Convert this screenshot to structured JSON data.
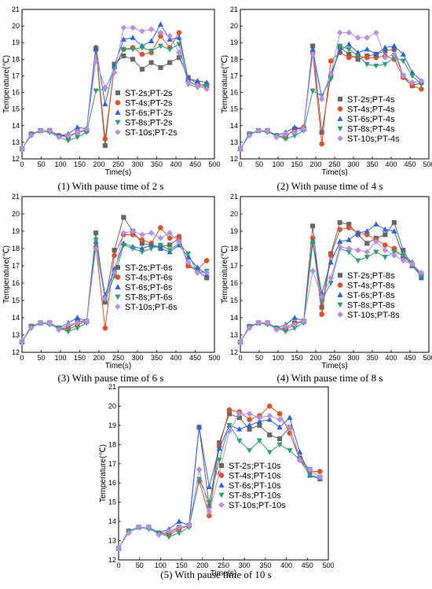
{
  "chart_data": [
    {
      "type": "line",
      "caption": "(1) With pause time of 2 s",
      "xlabel": "Time(s)",
      "ylabel": "Temperature(℃)",
      "xlim": [
        0,
        500
      ],
      "ylim": [
        12,
        21
      ],
      "xticks": [
        0,
        50,
        100,
        150,
        200,
        250,
        300,
        350,
        400,
        450,
        500
      ],
      "yticks": [
        12,
        13,
        14,
        15,
        16,
        17,
        18,
        19,
        20,
        21
      ],
      "x": [
        0,
        24,
        48,
        72,
        96,
        120,
        144,
        168,
        192,
        216,
        240,
        264,
        288,
        312,
        336,
        360,
        384,
        408,
        432,
        456,
        480
      ],
      "series": [
        {
          "name": "ST-2s;PT-2s",
          "color": "#666666",
          "marker": "square",
          "values": [
            12.6,
            13.5,
            13.7,
            13.7,
            13.4,
            13.3,
            13.6,
            13.7,
            18.6,
            12.8,
            17.7,
            18.2,
            18.0,
            17.4,
            17.8,
            17.5,
            17.8,
            18.1,
            16.9,
            16.5,
            16.4
          ]
        },
        {
          "name": "ST-4s;PT-2s",
          "color": "#d9532c",
          "marker": "circle",
          "values": [
            12.6,
            13.5,
            13.7,
            13.7,
            13.4,
            13.4,
            13.6,
            13.8,
            18.7,
            13.2,
            17.5,
            18.6,
            18.7,
            18.3,
            18.4,
            19.4,
            18.7,
            19.6,
            16.7,
            16.4,
            16.5
          ]
        },
        {
          "name": "ST-6s;PT-2s",
          "color": "#2c62d9",
          "marker": "triangle",
          "values": [
            12.6,
            13.5,
            13.7,
            13.7,
            13.4,
            13.5,
            13.9,
            13.8,
            18.7,
            15.3,
            17.6,
            19.2,
            19.3,
            18.8,
            19.1,
            20.1,
            19.2,
            19.3,
            16.8,
            16.7,
            16.6
          ]
        },
        {
          "name": "ST-8s;PT-2s",
          "color": "#2e9b7a",
          "marker": "triangle-down",
          "values": [
            12.6,
            13.5,
            13.7,
            13.6,
            13.3,
            13.1,
            13.3,
            13.6,
            16.1,
            16.2,
            17.4,
            18.6,
            18.6,
            18.7,
            18.5,
            18.8,
            18.6,
            18.9,
            16.5,
            16.3,
            16.4
          ]
        },
        {
          "name": "ST-10s;PT-2s",
          "color": "#b98ee6",
          "marker": "diamond",
          "values": [
            12.6,
            13.4,
            13.7,
            13.7,
            13.3,
            13.4,
            13.6,
            13.8,
            17.9,
            16.3,
            17.2,
            19.9,
            19.9,
            19.7,
            19.8,
            19.6,
            19.4,
            18.4,
            16.6,
            16.4,
            16.2
          ]
        }
      ]
    },
    {
      "type": "line",
      "caption": "(2) With pause time of 4 s",
      "xlabel": "Time(s)",
      "ylabel": "Temperature(℃)",
      "xlim": [
        0,
        500
      ],
      "ylim": [
        12,
        21
      ],
      "xticks": [
        0,
        50,
        100,
        150,
        200,
        250,
        300,
        350,
        400,
        450,
        500
      ],
      "yticks": [
        12,
        13,
        14,
        15,
        16,
        17,
        18,
        19,
        20,
        21
      ],
      "x": [
        0,
        24,
        48,
        72,
        96,
        120,
        144,
        168,
        192,
        216,
        240,
        264,
        288,
        312,
        336,
        360,
        384,
        408,
        432,
        456,
        480
      ],
      "series": [
        {
          "name": "ST-2s;PT-4s",
          "color": "#666666",
          "marker": "square",
          "values": [
            12.6,
            13.5,
            13.7,
            13.7,
            13.4,
            13.3,
            13.8,
            13.8,
            18.8,
            13.6,
            17.0,
            18.7,
            18.3,
            18.0,
            18.2,
            18.3,
            18.5,
            18.6,
            17.0,
            16.4,
            16.6
          ]
        },
        {
          "name": "ST-4s;PT-4s",
          "color": "#d9532c",
          "marker": "circle",
          "values": [
            12.6,
            13.5,
            13.7,
            13.7,
            13.4,
            13.3,
            13.8,
            13.9,
            18.4,
            12.9,
            17.9,
            18.4,
            18.1,
            18.2,
            18.1,
            18.1,
            18.2,
            18.0,
            16.9,
            16.4,
            16.2
          ]
        },
        {
          "name": "ST-6s;PT-4s",
          "color": "#2c62d9",
          "marker": "triangle",
          "values": [
            12.6,
            13.5,
            13.7,
            13.7,
            13.4,
            13.6,
            13.9,
            13.8,
            18.6,
            15.7,
            17.1,
            18.5,
            18.9,
            18.4,
            18.6,
            18.3,
            18.7,
            18.8,
            18.3,
            17.2,
            16.7
          ]
        },
        {
          "name": "ST-8s;PT-4s",
          "color": "#2e9b7a",
          "marker": "triangle-down",
          "values": [
            12.6,
            13.5,
            13.7,
            13.6,
            13.4,
            13.2,
            13.4,
            13.7,
            16.1,
            15.8,
            16.8,
            18.8,
            18.6,
            18.2,
            17.7,
            17.6,
            17.7,
            18.1,
            17.9,
            17.0,
            16.5
          ]
        },
        {
          "name": "ST-10s;PT-4s",
          "color": "#b98ee6",
          "marker": "diamond",
          "values": [
            12.6,
            13.4,
            13.7,
            13.7,
            13.3,
            13.5,
            13.6,
            13.8,
            18.3,
            15.6,
            17.1,
            19.6,
            19.6,
            19.3,
            19.3,
            19.6,
            18.1,
            18.3,
            17.0,
            16.6,
            16.7
          ]
        }
      ]
    },
    {
      "type": "line",
      "caption": "(3) With pause time of 6 s",
      "xlabel": "Time(s)",
      "ylabel": "Temperature(℃)",
      "xlim": [
        0,
        500
      ],
      "ylim": [
        12,
        21
      ],
      "xticks": [
        0,
        50,
        100,
        150,
        200,
        250,
        300,
        350,
        400,
        450,
        500
      ],
      "yticks": [
        12,
        13,
        14,
        15,
        16,
        17,
        18,
        19,
        20,
        21
      ],
      "x": [
        0,
        24,
        48,
        72,
        96,
        120,
        144,
        168,
        192,
        216,
        240,
        264,
        288,
        312,
        336,
        360,
        384,
        408,
        432,
        456,
        480
      ],
      "series": [
        {
          "name": "ST-2s;PT-6s",
          "color": "#666666",
          "marker": "square",
          "values": [
            12.6,
            13.5,
            13.7,
            13.7,
            13.4,
            13.4,
            13.8,
            13.8,
            18.9,
            14.9,
            17.9,
            19.8,
            19.0,
            18.3,
            18.2,
            18.1,
            18.2,
            18.6,
            17.0,
            16.7,
            16.3
          ]
        },
        {
          "name": "ST-4s;PT-6s",
          "color": "#d9532c",
          "marker": "circle",
          "values": [
            12.6,
            13.5,
            13.7,
            13.7,
            13.4,
            13.3,
            13.6,
            13.8,
            18.1,
            13.4,
            17.6,
            18.8,
            18.8,
            18.5,
            18.3,
            19.2,
            18.6,
            18.7,
            17.0,
            16.8,
            17.3
          ]
        },
        {
          "name": "ST-6s;PT-6s",
          "color": "#2c62d9",
          "marker": "triangle",
          "values": [
            12.6,
            13.5,
            13.7,
            13.7,
            13.4,
            13.7,
            14.0,
            13.8,
            18.4,
            15.3,
            16.8,
            18.3,
            18.1,
            18.0,
            18.2,
            18.0,
            17.8,
            18.2,
            17.5,
            16.9,
            16.5
          ]
        },
        {
          "name": "ST-8s;PT-6s",
          "color": "#2e9b7a",
          "marker": "triangle-down",
          "values": [
            12.6,
            13.5,
            13.7,
            13.6,
            13.4,
            13.2,
            13.4,
            13.7,
            18.5,
            15.0,
            16.4,
            18.2,
            18.0,
            17.8,
            18.0,
            18.2,
            17.9,
            18.3,
            17.7,
            16.6,
            16.7
          ]
        },
        {
          "name": "ST-10s;PT-6s",
          "color": "#b98ee6",
          "marker": "diamond",
          "values": [
            12.6,
            13.4,
            13.7,
            13.7,
            13.3,
            13.6,
            13.7,
            13.8,
            18.0,
            15.1,
            16.6,
            18.9,
            19.0,
            18.8,
            18.9,
            18.6,
            18.9,
            18.4,
            17.2,
            16.6,
            16.6
          ]
        }
      ]
    },
    {
      "type": "line",
      "caption": "(4) With pause time of 8 s",
      "xlabel": "Time(s)",
      "ylabel": "Temperature(℃)",
      "xlim": [
        0,
        500
      ],
      "ylim": [
        12,
        21
      ],
      "xticks": [
        0,
        50,
        100,
        150,
        200,
        250,
        300,
        350,
        400,
        450,
        500
      ],
      "yticks": [
        12,
        13,
        14,
        15,
        16,
        17,
        18,
        19,
        20,
        21
      ],
      "x": [
        0,
        24,
        48,
        72,
        96,
        120,
        144,
        168,
        192,
        216,
        240,
        264,
        288,
        312,
        336,
        360,
        384,
        408,
        432,
        456,
        480
      ],
      "series": [
        {
          "name": "ST-2s;PT-8s",
          "color": "#666666",
          "marker": "square",
          "values": [
            12.6,
            13.5,
            13.7,
            13.7,
            13.4,
            13.4,
            13.7,
            13.8,
            19.3,
            14.6,
            17.7,
            19.5,
            19.4,
            18.8,
            18.3,
            18.6,
            18.8,
            19.5,
            17.9,
            17.0,
            16.4
          ]
        },
        {
          "name": "ST-4s;PT-8s",
          "color": "#d9532c",
          "marker": "circle",
          "values": [
            12.6,
            13.5,
            13.7,
            13.7,
            13.4,
            13.3,
            13.6,
            13.8,
            18.6,
            14.2,
            17.6,
            19.1,
            19.2,
            18.9,
            18.8,
            18.5,
            18.2,
            18.0,
            17.5,
            17.1,
            16.5
          ]
        },
        {
          "name": "ST-6s;PT-8s",
          "color": "#2c62d9",
          "marker": "triangle",
          "values": [
            12.6,
            13.5,
            13.7,
            13.7,
            13.4,
            13.6,
            14.0,
            13.8,
            18.4,
            15.4,
            17.2,
            18.4,
            18.5,
            18.9,
            19.0,
            19.4,
            19.1,
            19.0,
            17.6,
            17.2,
            16.3
          ]
        },
        {
          "name": "ST-8s;PT-8s",
          "color": "#2e9b7a",
          "marker": "triangle-down",
          "values": [
            12.6,
            13.5,
            13.7,
            13.6,
            13.4,
            13.2,
            13.4,
            13.7,
            18.3,
            15.0,
            16.0,
            18.0,
            17.8,
            17.3,
            17.5,
            17.8,
            17.5,
            17.8,
            17.6,
            17.0,
            16.4
          ]
        },
        {
          "name": "ST-10s;PT-8s",
          "color": "#b98ee6",
          "marker": "diamond",
          "values": [
            12.6,
            13.4,
            13.7,
            13.7,
            13.3,
            13.5,
            13.6,
            13.8,
            16.7,
            15.2,
            16.3,
            18.1,
            18.0,
            17.9,
            17.8,
            18.4,
            17.9,
            17.6,
            17.3,
            17.1,
            16.6
          ]
        }
      ]
    },
    {
      "type": "line",
      "caption": "(5) With pause time of 10 s",
      "xlabel": "Time(s)",
      "ylabel": "Temperature(℃)",
      "xlim": [
        0,
        500
      ],
      "ylim": [
        12,
        21
      ],
      "xticks": [
        0,
        50,
        100,
        150,
        200,
        250,
        300,
        350,
        400,
        450,
        500
      ],
      "yticks": [
        12,
        13,
        14,
        15,
        16,
        17,
        18,
        19,
        20,
        21
      ],
      "x": [
        0,
        24,
        48,
        72,
        96,
        120,
        144,
        168,
        192,
        216,
        240,
        264,
        288,
        312,
        336,
        360,
        384,
        408,
        432,
        456,
        480
      ],
      "series": [
        {
          "name": "ST-2s;PT-10s",
          "color": "#666666",
          "marker": "square",
          "values": [
            12.6,
            13.5,
            13.7,
            13.7,
            13.4,
            13.4,
            13.7,
            13.8,
            18.9,
            14.8,
            18.1,
            19.6,
            19.4,
            18.8,
            19.0,
            18.5,
            18.3,
            18.9,
            17.3,
            16.7,
            16.3
          ]
        },
        {
          "name": "ST-4s;PT-10s",
          "color": "#d9532c",
          "marker": "circle",
          "values": [
            12.6,
            13.5,
            13.7,
            13.7,
            13.4,
            13.3,
            13.6,
            13.8,
            16.1,
            14.3,
            17.9,
            19.8,
            19.7,
            19.3,
            19.5,
            20.0,
            19.6,
            18.6,
            17.2,
            16.6,
            16.6
          ]
        },
        {
          "name": "ST-6s;PT-10s",
          "color": "#2c62d9",
          "marker": "triangle",
          "values": [
            12.6,
            13.5,
            13.7,
            13.7,
            13.4,
            13.6,
            14.0,
            13.8,
            18.9,
            15.8,
            17.8,
            19.0,
            18.8,
            19.0,
            19.2,
            19.3,
            18.9,
            19.4,
            17.6,
            16.4,
            16.2
          ]
        },
        {
          "name": "ST-8s;PT-10s",
          "color": "#2e9b7a",
          "marker": "triangle-down",
          "values": [
            12.6,
            13.5,
            13.7,
            13.6,
            13.4,
            13.2,
            13.4,
            13.7,
            16.2,
            15.0,
            17.2,
            19.0,
            18.2,
            17.7,
            18.2,
            17.6,
            18.0,
            17.7,
            17.2,
            16.4,
            16.3
          ]
        },
        {
          "name": "ST-10s;PT-10s",
          "color": "#b98ee6",
          "marker": "diamond",
          "values": [
            12.6,
            13.4,
            13.7,
            13.7,
            13.3,
            13.5,
            13.7,
            13.8,
            16.7,
            14.5,
            16.5,
            18.7,
            19.6,
            19.6,
            19.4,
            19.5,
            19.3,
            18.9,
            17.2,
            16.7,
            16.3
          ]
        }
      ]
    }
  ]
}
